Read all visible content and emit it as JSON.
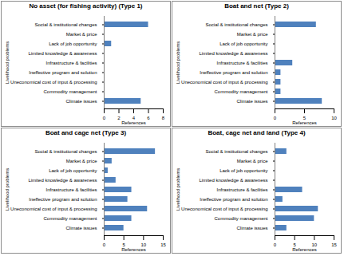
{
  "chart_data": [
    {
      "type": "bar",
      "orientation": "horizontal",
      "title": "No asset (for fishing activity) (Type 1)",
      "x_label": "References",
      "y_label": "Livelihood problems",
      "color": "#4f81bd",
      "categories": [
        "Social & institutional changes",
        "Market & price",
        "Lack of job opportunity",
        "Limited knowledge & awareness",
        "Infrastructure & facilities",
        "Ineffective program and solution",
        "Uneconomical cost of input & processing",
        "Commodity management",
        "Climate issues"
      ],
      "values": [
        6,
        0,
        1,
        0,
        0,
        0,
        0,
        0,
        5
      ],
      "xlim": [
        0,
        8
      ],
      "xticks": [
        0,
        2,
        4,
        6,
        8
      ]
    },
    {
      "type": "bar",
      "orientation": "horizontal",
      "title": "Boat and net (Type 2)",
      "x_label": "References",
      "y_label": "Livelihood problems",
      "color": "#4f81bd",
      "categories": [
        "Social & institutional changes",
        "Market & price",
        "Lack of job opportunity",
        "Limited knowledge & awareness",
        "Infrastructure & facilities",
        "Ineffective program and solution",
        "Uneconomical cost of input & processing",
        "Commodity management",
        "Climate issues"
      ],
      "values": [
        7,
        0,
        0,
        0,
        3,
        1,
        1,
        1,
        8
      ],
      "xlim": [
        0,
        10
      ],
      "xticks": [
        0,
        5,
        10
      ]
    },
    {
      "type": "bar",
      "orientation": "horizontal",
      "title": "Boat and cage net (Type 3)",
      "x_label": "References",
      "y_label": "Livelihood problems",
      "color": "#4f81bd",
      "categories": [
        "Social & institutional changes",
        "Market & price",
        "Lack of job opportunity",
        "Limited knowledge & awareness",
        "Infrastructure & facilities",
        "Ineffective program and solution",
        "Uneconomical cost of input & processing",
        "Commodity management",
        "Climate issues"
      ],
      "values": [
        13,
        2,
        1,
        3,
        7,
        6,
        11,
        7,
        5
      ],
      "xlim": [
        0,
        15
      ],
      "xticks": [
        0,
        5,
        10,
        15
      ]
    },
    {
      "type": "bar",
      "orientation": "horizontal",
      "title": "Boat, cage net and land (Type 4)",
      "x_label": "References",
      "y_label": "Livelihood problems",
      "color": "#4f81bd",
      "categories": [
        "Social & institutional changes",
        "Market & price",
        "Lack of job opportunity",
        "Limited knowledge & awareness",
        "Infrastructure & facilities",
        "Ineffective program and solution",
        "Uneconomical cost of input & processing",
        "Commodity management",
        "Climate issues"
      ],
      "values": [
        3,
        0,
        0,
        0,
        7,
        2,
        11,
        10,
        3
      ],
      "xlim": [
        0,
        15
      ],
      "xticks": [
        0,
        5,
        10,
        15
      ]
    }
  ]
}
